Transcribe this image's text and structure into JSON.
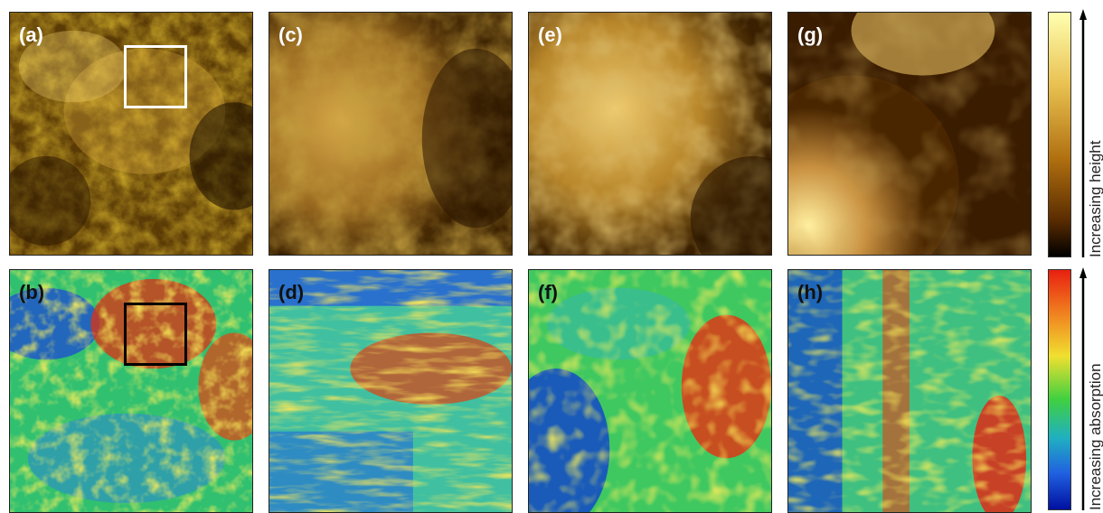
{
  "panels": [
    {
      "id": "a",
      "label": "(a)",
      "type": "height"
    },
    {
      "id": "c",
      "label": "(c)",
      "type": "height"
    },
    {
      "id": "e",
      "label": "(e)",
      "type": "height"
    },
    {
      "id": "g",
      "label": "(g)",
      "type": "height"
    },
    {
      "id": "b",
      "label": "(b)",
      "type": "absorption"
    },
    {
      "id": "d",
      "label": "(d)",
      "type": "absorption"
    },
    {
      "id": "f",
      "label": "(f)",
      "type": "absorption"
    },
    {
      "id": "h",
      "label": "(h)",
      "type": "absorption"
    }
  ],
  "colorbars": {
    "height_label": "Increasing height",
    "absorption_label": "Increasing absorption",
    "height_colors": [
      "#ffffb0",
      "#e8c050",
      "#b07010",
      "#5a2c00",
      "#000000"
    ],
    "absorption_colors": [
      "#e82010",
      "#f08020",
      "#f0e030",
      "#40d040",
      "#20b0c0",
      "#2060e0",
      "#0010a0"
    ]
  },
  "highlight_colors": {
    "white_box": "#ffffff",
    "black_box": "#000000"
  }
}
